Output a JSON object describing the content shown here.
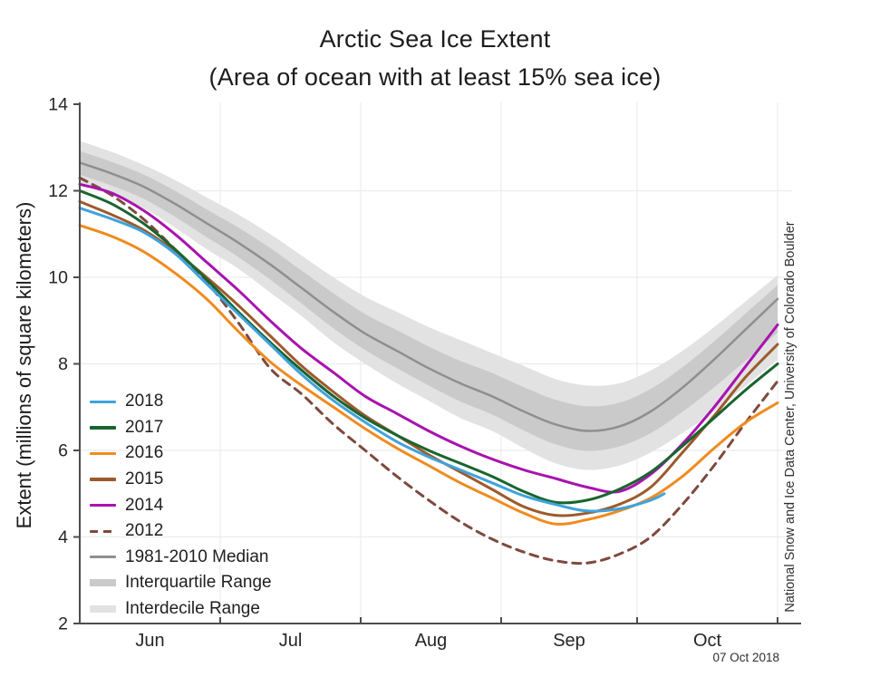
{
  "chart_data": {
    "type": "line",
    "title": "Arctic Sea Ice Extent",
    "subtitle": "(Area of ocean with at least 15% sea ice)",
    "ylabel": "Extent (millions of square kilometers)",
    "attribution": "National Snow and Ice Data Center, University of Colorado Boulder",
    "date_stamp": "07 Oct 2018",
    "ylim": [
      2,
      14
    ],
    "y_ticks": [
      2,
      4,
      6,
      8,
      10,
      12,
      14
    ],
    "grid": true,
    "x_axis": {
      "start_date": "May 31",
      "end_date": "Nov 1",
      "total_days": 154,
      "month_labels": [
        "Jun",
        "Jul",
        "Aug",
        "Sep",
        "Oct"
      ],
      "month_mid_days": [
        15.5,
        46.5,
        77.5,
        108,
        138.5
      ],
      "month_boundary_days": [
        31,
        62,
        93,
        123,
        154
      ]
    },
    "sample_day_offsets": [
      0,
      7,
      14,
      21,
      28,
      35,
      42,
      49,
      56,
      63,
      70,
      77,
      84,
      91,
      98,
      105,
      112,
      119,
      126,
      133,
      140,
      147,
      154
    ],
    "sample_dates": [
      "May 31",
      "Jun 7",
      "Jun 14",
      "Jun 21",
      "Jun 28",
      "Jul 5",
      "Jul 12",
      "Jul 19",
      "Jul 26",
      "Aug 2",
      "Aug 9",
      "Aug 16",
      "Aug 23",
      "Aug 30",
      "Sep 6",
      "Sep 13",
      "Sep 20",
      "Sep 27",
      "Oct 4",
      "Oct 11",
      "Oct 18",
      "Oct 25",
      "Nov 1"
    ],
    "bands": [
      {
        "name": "Interdecile Range",
        "color_key": "idr_band",
        "hi": [
          13.15,
          12.9,
          12.6,
          12.25,
          11.85,
          11.45,
          11.0,
          10.5,
          10.0,
          9.55,
          9.2,
          8.85,
          8.55,
          8.25,
          7.95,
          7.65,
          7.5,
          7.55,
          7.85,
          8.3,
          8.85,
          9.45,
          10.05
        ],
        "lo": [
          12.15,
          11.9,
          11.6,
          11.15,
          10.65,
          10.2,
          9.65,
          9.1,
          8.5,
          8.0,
          7.55,
          7.15,
          6.75,
          6.45,
          6.05,
          5.7,
          5.55,
          5.65,
          5.95,
          6.4,
          6.9,
          7.5,
          8.1
        ]
      },
      {
        "name": "Interquartile Range",
        "color_key": "iqr_band",
        "hi": [
          12.92,
          12.67,
          12.38,
          12.0,
          11.57,
          11.15,
          10.68,
          10.15,
          9.63,
          9.15,
          8.78,
          8.4,
          8.07,
          7.79,
          7.46,
          7.17,
          7.02,
          7.1,
          7.42,
          7.92,
          8.52,
          9.17,
          9.82
        ],
        "lo": [
          12.37,
          12.12,
          11.82,
          11.4,
          10.93,
          10.47,
          9.95,
          9.39,
          8.82,
          8.32,
          7.9,
          7.5,
          7.13,
          6.83,
          6.46,
          6.14,
          5.99,
          6.09,
          6.4,
          6.89,
          7.46,
          8.08,
          8.72
        ]
      }
    ],
    "series": [
      {
        "name": "1981-2010 Median",
        "color_key": "median",
        "dashed": false,
        "width": 2.5,
        "values": [
          12.65,
          12.4,
          12.1,
          11.7,
          11.25,
          10.8,
          10.3,
          9.75,
          9.2,
          8.7,
          8.3,
          7.9,
          7.55,
          7.25,
          6.9,
          6.6,
          6.45,
          6.55,
          6.9,
          7.45,
          8.1,
          8.8,
          9.5
        ]
      },
      {
        "name": "2012",
        "color_key": "y2012",
        "dashed": true,
        "width": 3,
        "values": [
          12.3,
          11.9,
          11.35,
          10.65,
          9.9,
          8.95,
          7.9,
          7.3,
          6.6,
          6.0,
          5.4,
          4.85,
          4.35,
          3.95,
          3.65,
          3.45,
          3.4,
          3.6,
          4.0,
          4.75,
          5.65,
          6.65,
          7.6
        ]
      },
      {
        "name": "2014",
        "color_key": "y2014",
        "dashed": false,
        "width": 3,
        "values": [
          12.15,
          11.95,
          11.55,
          11.0,
          10.35,
          9.7,
          9.0,
          8.35,
          7.8,
          7.25,
          6.85,
          6.45,
          6.1,
          5.8,
          5.55,
          5.35,
          5.15,
          5.05,
          5.45,
          6.15,
          7.0,
          7.95,
          8.9
        ]
      },
      {
        "name": "2015",
        "color_key": "y2015",
        "dashed": false,
        "width": 3,
        "values": [
          11.75,
          11.45,
          11.1,
          10.6,
          10.0,
          9.35,
          8.65,
          7.95,
          7.35,
          6.8,
          6.35,
          5.9,
          5.5,
          5.1,
          4.7,
          4.5,
          4.55,
          4.75,
          5.15,
          5.95,
          6.8,
          7.7,
          8.45
        ]
      },
      {
        "name": "2016",
        "color_key": "y2016",
        "dashed": false,
        "width": 3,
        "values": [
          11.2,
          10.95,
          10.6,
          10.1,
          9.5,
          8.75,
          8.05,
          7.5,
          7.0,
          6.5,
          6.05,
          5.65,
          5.25,
          4.9,
          4.55,
          4.3,
          4.4,
          4.6,
          4.9,
          5.4,
          6.05,
          6.65,
          7.1
        ]
      },
      {
        "name": "2017",
        "color_key": "y2017",
        "dashed": false,
        "width": 3,
        "values": [
          12.0,
          11.7,
          11.25,
          10.65,
          9.95,
          9.2,
          8.5,
          7.85,
          7.25,
          6.75,
          6.35,
          6.0,
          5.7,
          5.4,
          5.05,
          4.8,
          4.85,
          5.1,
          5.5,
          6.1,
          6.75,
          7.4,
          8.0
        ]
      },
      {
        "name": "2018",
        "color_key": "y2018",
        "dashed": false,
        "width": 3,
        "days": [
          0,
          7,
          14,
          21,
          28,
          35,
          42,
          49,
          56,
          63,
          70,
          77,
          84,
          91,
          98,
          105,
          112,
          119,
          126,
          129
        ],
        "values": [
          11.6,
          11.35,
          11.05,
          10.55,
          9.85,
          9.15,
          8.45,
          7.75,
          7.15,
          6.65,
          6.2,
          5.85,
          5.55,
          5.25,
          4.95,
          4.75,
          4.6,
          4.65,
          4.85,
          5.0
        ]
      }
    ],
    "legend": [
      {
        "label": "2018",
        "color_key": "y2018",
        "swatch": "line"
      },
      {
        "label": "2017",
        "color_key": "y2017",
        "swatch": "line"
      },
      {
        "label": "2016",
        "color_key": "y2016",
        "swatch": "line"
      },
      {
        "label": "2015",
        "color_key": "y2015",
        "swatch": "line"
      },
      {
        "label": "2014",
        "color_key": "y2014",
        "swatch": "line"
      },
      {
        "label": "2012",
        "color_key": "y2012",
        "swatch": "dashed-line"
      },
      {
        "label": "1981-2010 Median",
        "color_key": "median",
        "swatch": "line"
      },
      {
        "label": "Interquartile Range",
        "color_key": "iqr_band",
        "swatch": "band"
      },
      {
        "label": "Interdecile Range",
        "color_key": "idr_band",
        "swatch": "band"
      }
    ],
    "colors": {
      "y2018": "#3FA3DC",
      "y2017": "#19642F",
      "y2016": "#EF8B1F",
      "y2015": "#9C5A2C",
      "y2014": "#A813AE",
      "y2012": "#7D4A3E",
      "median": "#8F8F8F",
      "iqr_band": "#CACACA",
      "idr_band": "#E2E2E2",
      "axis": "#4D4D4D",
      "grid": "#ECECEC",
      "text": "#262626"
    }
  }
}
